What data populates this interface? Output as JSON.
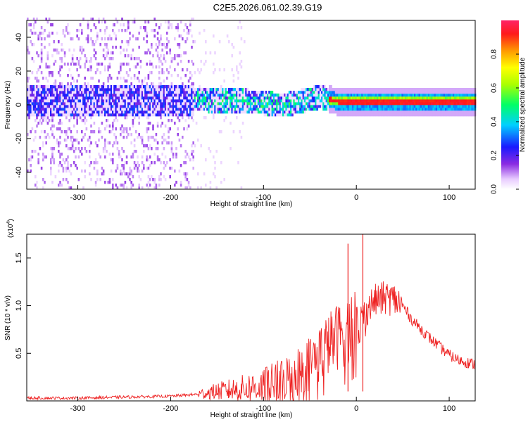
{
  "chart_data": [
    {
      "type": "heatmap",
      "title": "C2E5.2026.061.02.39.G19",
      "xlabel": "Height of straight line (km)",
      "ylabel": "Frequency (Hz)",
      "xlim": [
        -355,
        128
      ],
      "ylim": [
        -50,
        50
      ],
      "xticks": [
        -300,
        -200,
        -100,
        0,
        100
      ],
      "xtick_labels": [
        "-300",
        "-200",
        "-100",
        "0",
        "100"
      ],
      "yticks": [
        -40,
        -20,
        0,
        20,
        40
      ],
      "ytick_labels": [
        "-40",
        "-20",
        "0",
        "20",
        "40"
      ],
      "colorbar": {
        "label": "Normalized spectral amplitude",
        "range": [
          0,
          1
        ],
        "ticks": [
          0.0,
          0.2,
          0.4,
          0.6,
          0.8
        ],
        "tick_labels": [
          "0.0",
          "0.2",
          "0.4",
          "0.6",
          "0.8"
        ]
      },
      "ridge_frequency_points": [
        {
          "x": -160,
          "y": 2
        },
        {
          "x": -120,
          "y": 1.5
        },
        {
          "x": -80,
          "y": -1
        },
        {
          "x": -40,
          "y": 4
        },
        {
          "x": -20,
          "y": 1
        },
        {
          "x": 0,
          "y": 1
        },
        {
          "x": 60,
          "y": 1
        },
        {
          "x": 128,
          "y": 1
        }
      ]
    },
    {
      "type": "line",
      "xlabel": "Height of straight line (km)",
      "ylabel": "SNR (10 * v/v)",
      "yscale_label": "(x10",
      "yscale_exp": "4",
      "yscale_close": ")",
      "xlim": [
        -355,
        128
      ],
      "ylim": [
        0,
        1.75
      ],
      "xticks": [
        -300,
        -200,
        -100,
        0,
        100
      ],
      "xtick_labels": [
        "-300",
        "-200",
        "-100",
        "0",
        "100"
      ],
      "yticks": [
        0.5,
        1.0,
        1.5
      ],
      "ytick_labels": [
        "0.5",
        "1.0",
        "1.5"
      ],
      "series": [
        {
          "name": "SNR",
          "color": "#ee2222",
          "x": [
            -355,
            -300,
            -250,
            -200,
            -170,
            -150,
            -120,
            -100,
            -80,
            -60,
            -50,
            -40,
            -30,
            -20,
            -10,
            0,
            10,
            20,
            30,
            40,
            50,
            60,
            80,
            100,
            110,
            128
          ],
          "y": [
            0.03,
            0.03,
            0.04,
            0.05,
            0.07,
            0.1,
            0.13,
            0.16,
            0.22,
            0.33,
            0.4,
            0.5,
            0.6,
            0.68,
            0.75,
            0.85,
            0.95,
            1.05,
            1.08,
            1.07,
            1.0,
            0.85,
            0.65,
            0.48,
            0.43,
            0.38
          ]
        }
      ],
      "spikes": [
        {
          "x": -9,
          "y": 1.65
        },
        {
          "x": 7,
          "y": 1.75
        }
      ]
    }
  ]
}
